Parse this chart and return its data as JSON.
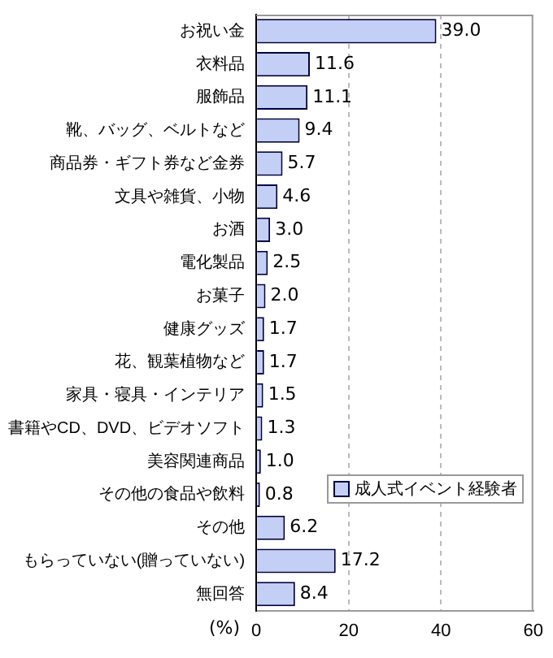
{
  "chart_data": {
    "type": "bar",
    "orientation": "horizontal",
    "categories": [
      "お祝い金",
      "衣料品",
      "服飾品",
      "靴、バッグ、ベルトなど",
      "商品券・ギフト券など金券",
      "文具や雑貨、小物",
      "お酒",
      "電化製品",
      "お菓子",
      "健康グッズ",
      "花、観葉植物など",
      "家具・寝具・インテリア",
      "書籍やCD、DVD、ビデオソフト",
      "美容関連商品",
      "その他の食品や飲料",
      "その他",
      "もらっていない(贈っていない)",
      "無回答"
    ],
    "series": [
      {
        "name": "成人式イベント経験者",
        "color": "#c4cff5",
        "values": [
          39.0,
          11.6,
          11.1,
          9.4,
          5.7,
          4.6,
          3.0,
          2.5,
          2.0,
          1.7,
          1.7,
          1.5,
          1.3,
          1.0,
          0.8,
          6.2,
          17.2,
          8.4
        ]
      }
    ],
    "value_labels": [
      "39.0",
      "11.6",
      "11.1",
      "9.4",
      "5.7",
      "4.6",
      "3.0",
      "2.5",
      "2.0",
      "1.7",
      "1.7",
      "1.5",
      "1.3",
      "1.0",
      "0.8",
      "6.2",
      "17.2",
      "8.4"
    ],
    "xlabel": "(%)",
    "xlim": [
      0,
      60
    ],
    "xticks": [
      0,
      20,
      40,
      60
    ],
    "grid": "x",
    "legend": "bottom right"
  }
}
